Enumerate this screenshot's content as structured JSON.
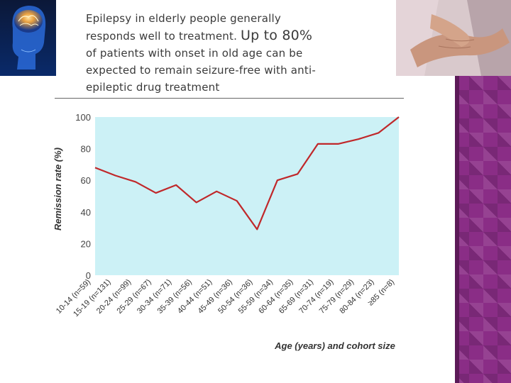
{
  "caption": {
    "line1": "Epilepsy in elderly people generally",
    "line2a": "responds well to treatment. ",
    "line2b": "Up to 80%",
    "line3": "of patients with onset in old age can be",
    "line4": "expected to remain seizure-free with anti-",
    "line5": "epileptic drug treatment"
  },
  "images": {
    "left": "brain-illustration",
    "right": "elderly-hands-photo"
  },
  "colors": {
    "plot_bg": "#ccf1f6",
    "line": "#c0282a",
    "accent_purple": "#8a2d86"
  },
  "chart_data": {
    "type": "line",
    "ylabel": "Remission rate (%)",
    "xlabel": "Age (years) and cohort size",
    "ylim": [
      0,
      100
    ],
    "yticks": [
      0,
      20,
      40,
      60,
      80,
      100
    ],
    "grid": false,
    "categories": [
      "10-14 (n=59)",
      "15-19 (n=131)",
      "20-24 (n=99)",
      "25-29 (n=67)",
      "30-34 (n=71)",
      "35-39 (n=56)",
      "40-44 (n=51)",
      "45-49 (n=36)",
      "50-54 (n=36)",
      "55-59 (n=34)",
      "60-64 (n=35)",
      "65-69 (n=31)",
      "70-74 (n=19)",
      "75-79 (n=29)",
      "80-84 (n=23)",
      "≥85 (n=8)"
    ],
    "values": [
      68,
      63,
      59,
      52,
      57,
      46,
      53,
      47,
      29,
      60,
      64,
      83,
      83,
      86,
      90,
      100
    ]
  }
}
